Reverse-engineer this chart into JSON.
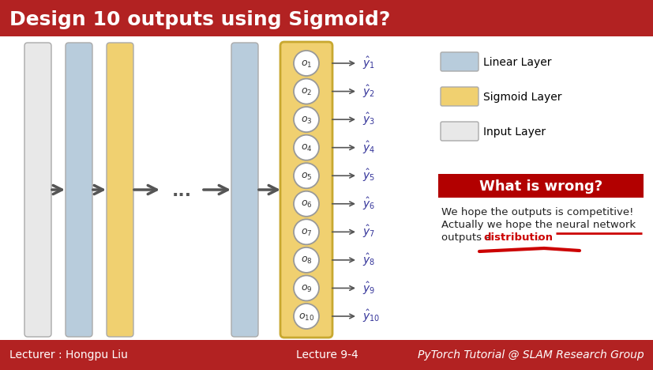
{
  "title": "Design 10 outputs using Sigmoid?",
  "title_bg": "#b22222",
  "title_color": "white",
  "footer_bg": "#b22222",
  "footer_color": "white",
  "footer_left": "Lecturer : Hongpu Liu",
  "footer_mid": "Lecture 9-4",
  "footer_right": "PyTorch Tutorial @ SLAM Research Group",
  "main_bg": "#ffffff",
  "layer_colors": {
    "input": "#e8e8e8",
    "linear": "#b8ccdc",
    "sigmoid": "#f0d070"
  },
  "n_outputs": 10,
  "legend_items": [
    {
      "label": "Linear Layer",
      "color": "#b8ccdc"
    },
    {
      "label": "Sigmoid Layer",
      "color": "#f0d070"
    },
    {
      "label": "Input Layer",
      "color": "#e8e8e8"
    }
  ],
  "wrong_box_color": "#b20000",
  "wrong_box_text": "What is wrong?",
  "wrong_text1": "We hope the outputs is competitive!",
  "wrong_text2": "Actually we hope the neural network",
  "wrong_text3_pre": "outputs a ",
  "wrong_text3_highlight": "distribution",
  "wrong_text3_post": ".",
  "underline_color": "#cc0000",
  "arrow_color": "#555555",
  "circle_edge": "#999999",
  "sig_edge": "#c8a830"
}
